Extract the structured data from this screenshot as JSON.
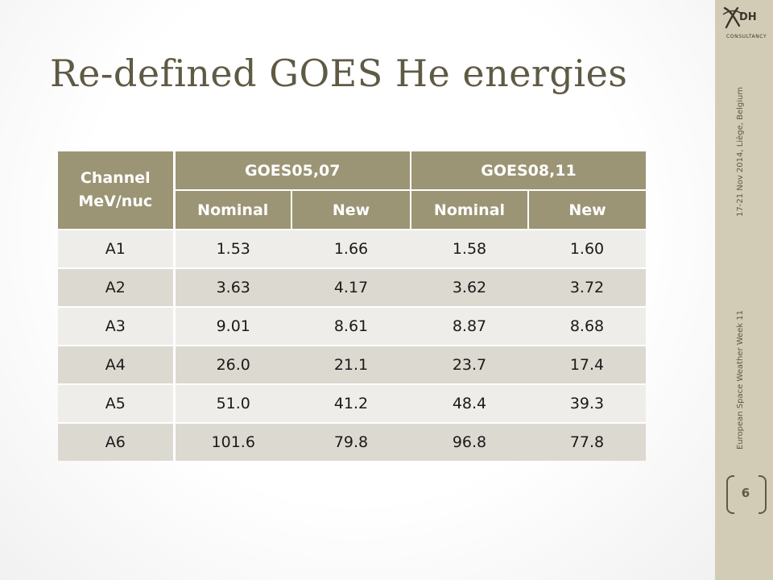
{
  "slide": {
    "title": "Re-defined GOES He energies",
    "footer_left": "European Space Weather Week 11",
    "footer_right": "17-21 Nov 2014, Liège, Belgium",
    "page_number": "6",
    "logo": {
      "letters": "DH",
      "subtitle": "CONSULTANCY",
      "icon": "x-logo-icon"
    }
  },
  "colors": {
    "header_bg": "#9b9575",
    "row_light": "#efede9",
    "row_dark": "#dcd9d1",
    "sidebar": "#d2ccb7",
    "title": "#5f5a44"
  },
  "table": {
    "channel_header": [
      "Channel",
      "MeV/nuc"
    ],
    "groups": [
      "GOES05,07",
      "GOES08,11"
    ],
    "subheaders": [
      "Nominal",
      "New",
      "Nominal",
      "New"
    ],
    "rows": [
      {
        "channel": "A1",
        "values": [
          "1.53",
          "1.66",
          "1.58",
          "1.60"
        ]
      },
      {
        "channel": "A2",
        "values": [
          "3.63",
          "4.17",
          "3.62",
          "3.72"
        ]
      },
      {
        "channel": "A3",
        "values": [
          "9.01",
          "8.61",
          "8.87",
          "8.68"
        ]
      },
      {
        "channel": "A4",
        "values": [
          "26.0",
          "21.1",
          "23.7",
          "17.4"
        ]
      },
      {
        "channel": "A5",
        "values": [
          "51.0",
          "41.2",
          "48.4",
          "39.3"
        ]
      },
      {
        "channel": "A6",
        "values": [
          "101.6",
          "79.8",
          "96.8",
          "77.8"
        ]
      }
    ]
  }
}
